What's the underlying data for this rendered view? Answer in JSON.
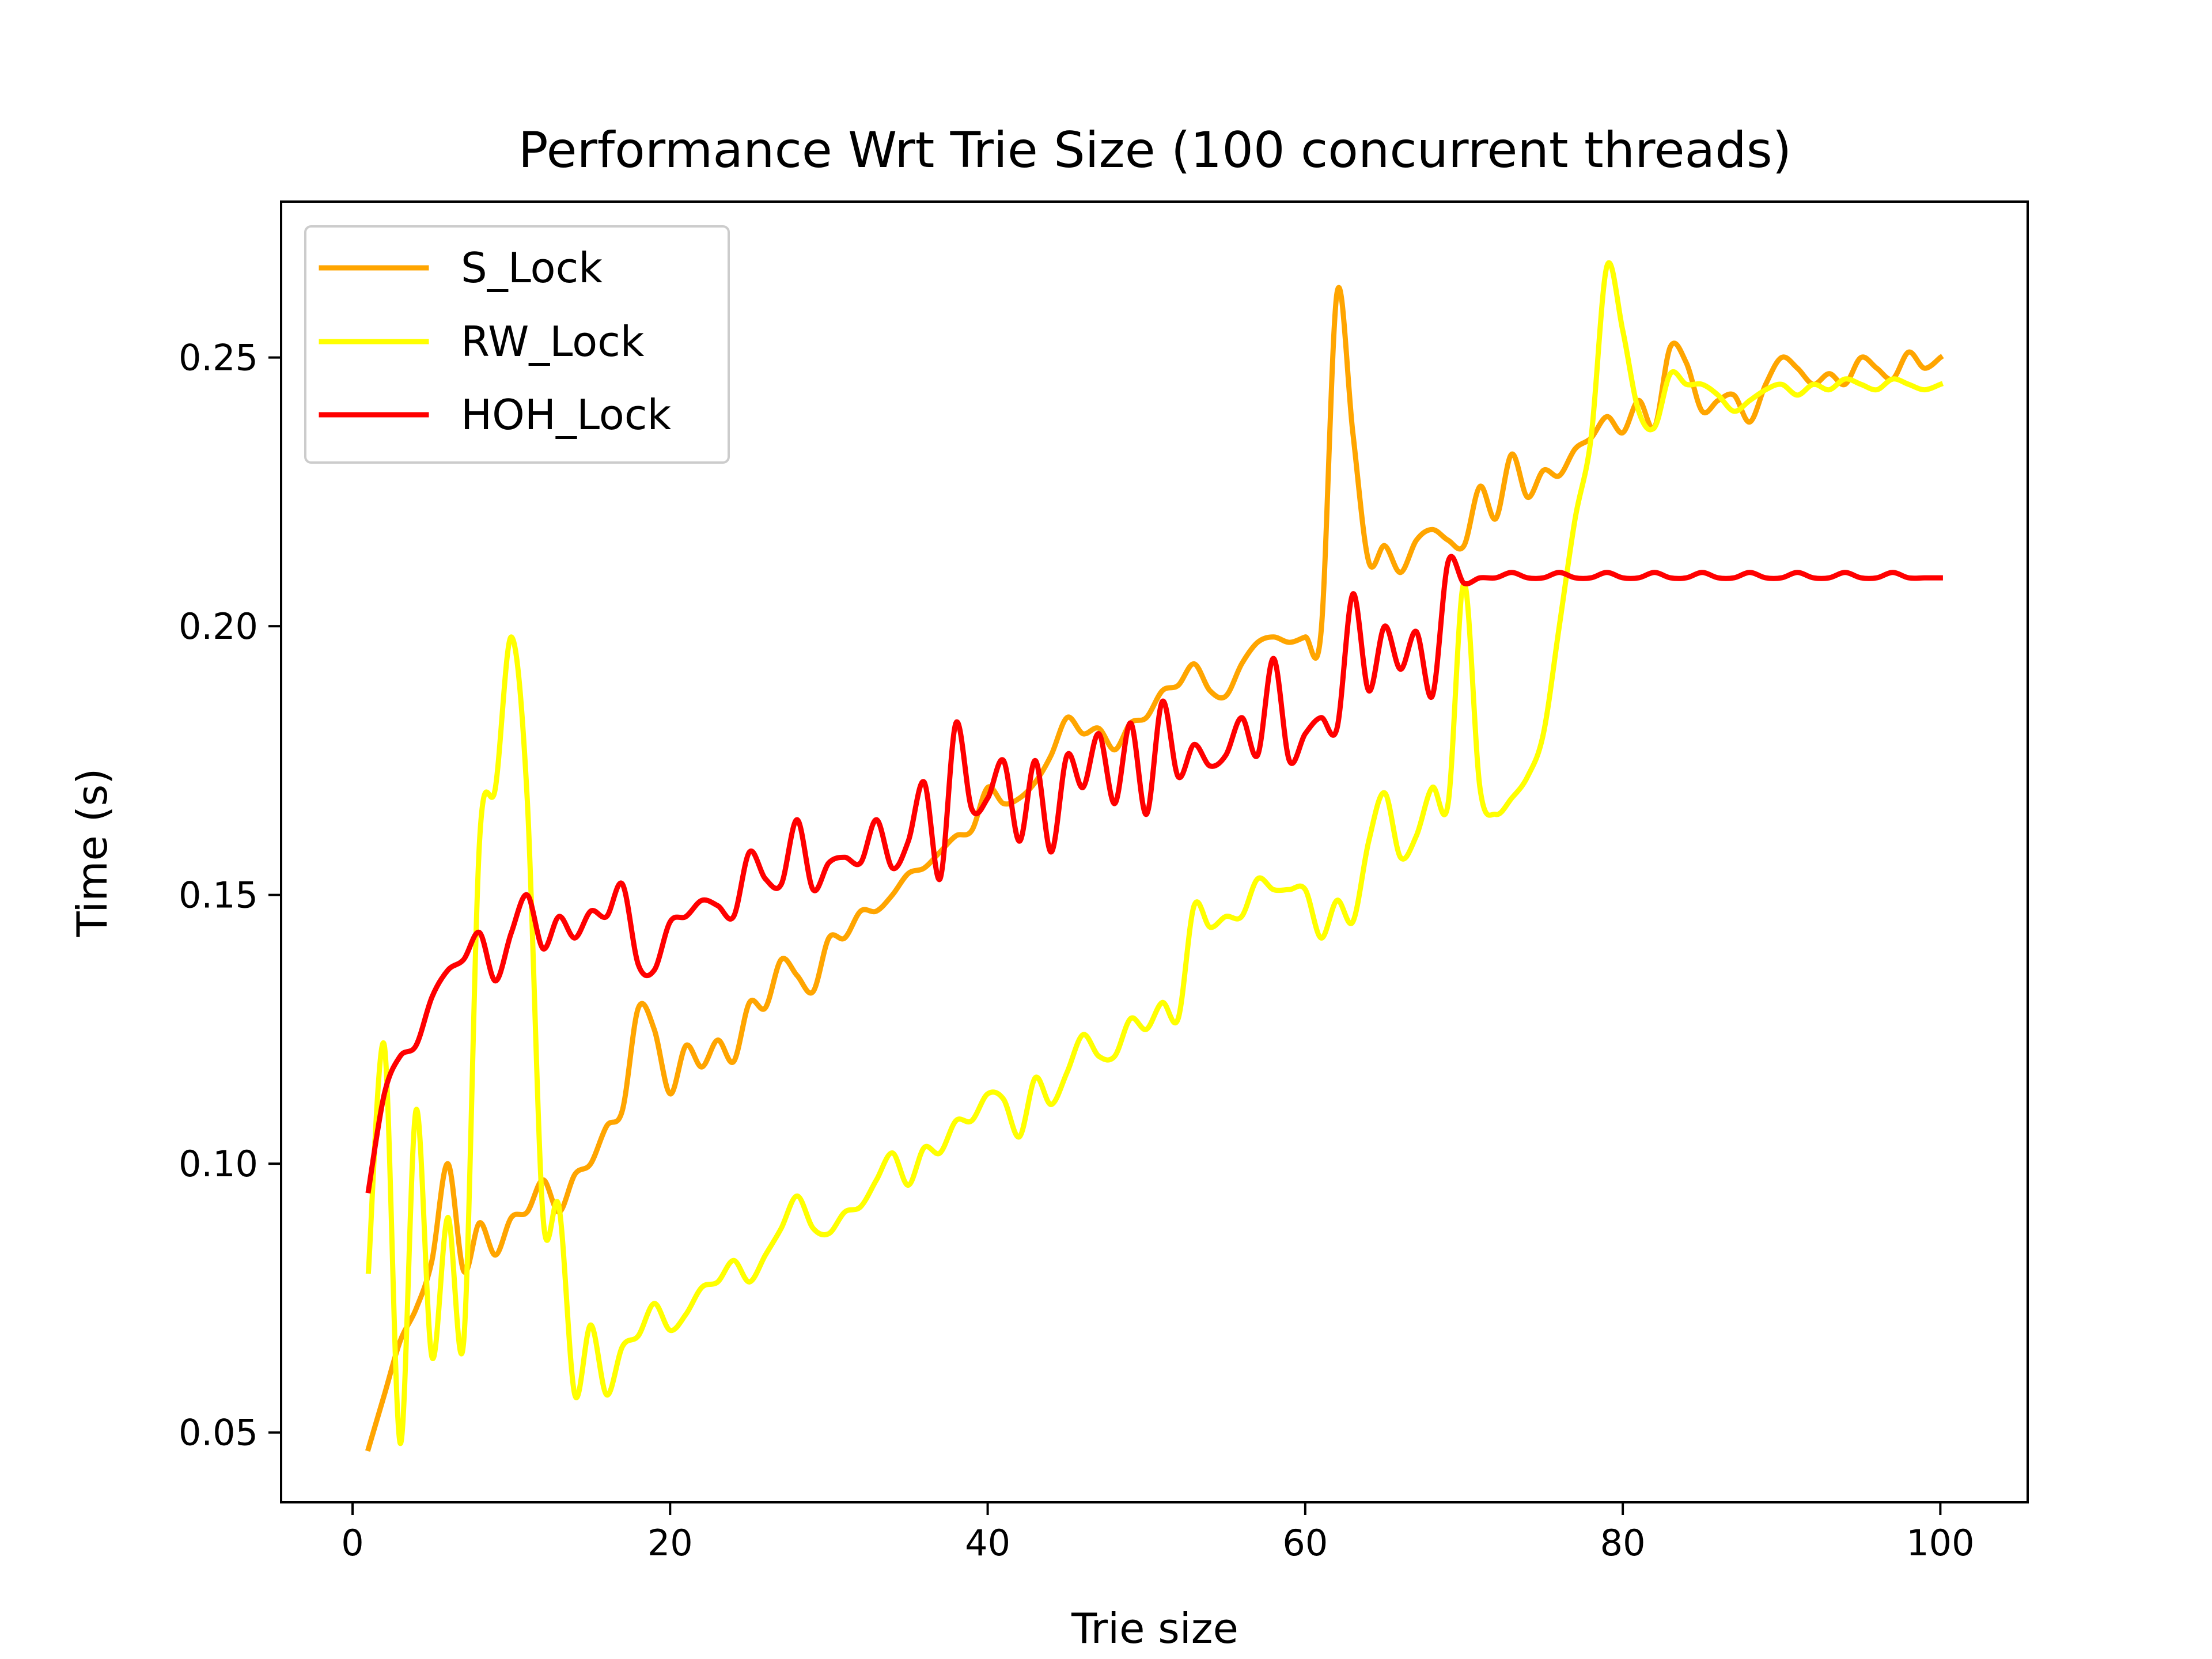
{
  "chart_data": {
    "type": "line",
    "title": "Performance Wrt Trie Size (100 concurrent threads)",
    "xlabel": "Trie size",
    "ylabel": "Time (s)",
    "xlim": [
      -4.5,
      105.5
    ],
    "ylim": [
      0.037,
      0.279
    ],
    "xticks": [
      0,
      20,
      40,
      60,
      80,
      100
    ],
    "xtick_labels": [
      "0",
      "20",
      "40",
      "60",
      "80",
      "100"
    ],
    "yticks": [
      0.05,
      0.1,
      0.15,
      0.2,
      0.25
    ],
    "ytick_labels": [
      "0.05",
      "0.10",
      "0.15",
      "0.20",
      "0.25"
    ],
    "grid": false,
    "legend_position": "top-left",
    "series": [
      {
        "name": "S_Lock",
        "color": "#FFA500",
        "x": [
          1,
          2,
          3,
          4,
          5,
          6,
          7,
          8,
          9,
          10,
          11,
          12,
          13,
          14,
          15,
          16,
          17,
          18,
          19,
          20,
          21,
          22,
          23,
          24,
          25,
          26,
          27,
          28,
          29,
          30,
          31,
          32,
          33,
          34,
          35,
          36,
          37,
          38,
          39,
          40,
          41,
          42,
          43,
          44,
          45,
          46,
          47,
          48,
          49,
          50,
          51,
          52,
          53,
          54,
          55,
          56,
          57,
          58,
          59,
          60,
          61,
          62,
          63,
          64,
          65,
          66,
          67,
          68,
          69,
          70,
          71,
          72,
          73,
          74,
          75,
          76,
          77,
          78,
          79,
          80,
          81,
          82,
          83,
          84,
          85,
          86,
          87,
          88,
          89,
          90,
          91,
          92,
          93,
          94,
          95,
          96,
          97,
          98,
          99,
          100
        ],
        "values": [
          0.047,
          0.057,
          0.067,
          0.073,
          0.082,
          0.1,
          0.08,
          0.089,
          0.083,
          0.09,
          0.091,
          0.097,
          0.091,
          0.098,
          0.1,
          0.107,
          0.11,
          0.129,
          0.125,
          0.113,
          0.122,
          0.118,
          0.123,
          0.119,
          0.13,
          0.129,
          0.138,
          0.135,
          0.132,
          0.142,
          0.142,
          0.147,
          0.147,
          0.15,
          0.154,
          0.155,
          0.158,
          0.161,
          0.162,
          0.17,
          0.167,
          0.168,
          0.171,
          0.176,
          0.183,
          0.18,
          0.181,
          0.177,
          0.182,
          0.183,
          0.188,
          0.189,
          0.193,
          0.188,
          0.187,
          0.193,
          0.197,
          0.198,
          0.197,
          0.198,
          0.199,
          0.262,
          0.236,
          0.212,
          0.215,
          0.21,
          0.216,
          0.218,
          0.216,
          0.215,
          0.226,
          0.22,
          0.232,
          0.224,
          0.229,
          0.228,
          0.233,
          0.235,
          0.239,
          0.236,
          0.242,
          0.237,
          0.252,
          0.249,
          0.24,
          0.242,
          0.243,
          0.238,
          0.245,
          0.25,
          0.248,
          0.245,
          0.247,
          0.245,
          0.25,
          0.248,
          0.246,
          0.251,
          0.248,
          0.25
        ]
      },
      {
        "name": "RW_Lock",
        "color": "#FFFF00",
        "x": [
          1,
          2,
          3,
          4,
          5,
          6,
          7,
          8,
          9,
          10,
          11,
          12,
          13,
          14,
          15,
          16,
          17,
          18,
          19,
          20,
          21,
          22,
          23,
          24,
          25,
          26,
          27,
          28,
          29,
          30,
          31,
          32,
          33,
          34,
          35,
          36,
          37,
          38,
          39,
          40,
          41,
          42,
          43,
          44,
          45,
          46,
          47,
          48,
          49,
          50,
          51,
          52,
          53,
          54,
          55,
          56,
          57,
          58,
          59,
          60,
          61,
          62,
          63,
          64,
          65,
          66,
          67,
          68,
          69,
          70,
          71,
          72,
          73,
          74,
          75,
          76,
          77,
          78,
          79,
          80,
          81,
          82,
          83,
          84,
          85,
          86,
          87,
          88,
          89,
          90,
          91,
          92,
          93,
          94,
          95,
          96,
          97,
          98,
          99,
          100
        ],
        "values": [
          0.08,
          0.122,
          0.048,
          0.11,
          0.064,
          0.09,
          0.067,
          0.16,
          0.17,
          0.198,
          0.168,
          0.09,
          0.092,
          0.057,
          0.07,
          0.057,
          0.066,
          0.068,
          0.074,
          0.069,
          0.072,
          0.077,
          0.078,
          0.082,
          0.078,
          0.083,
          0.088,
          0.094,
          0.088,
          0.087,
          0.091,
          0.092,
          0.097,
          0.102,
          0.096,
          0.103,
          0.102,
          0.108,
          0.108,
          0.113,
          0.112,
          0.105,
          0.116,
          0.111,
          0.117,
          0.124,
          0.12,
          0.12,
          0.127,
          0.125,
          0.13,
          0.127,
          0.148,
          0.144,
          0.146,
          0.146,
          0.153,
          0.151,
          0.151,
          0.151,
          0.142,
          0.149,
          0.145,
          0.16,
          0.169,
          0.157,
          0.161,
          0.17,
          0.167,
          0.208,
          0.17,
          0.165,
          0.168,
          0.172,
          0.18,
          0.2,
          0.22,
          0.235,
          0.267,
          0.255,
          0.24,
          0.237,
          0.247,
          0.245,
          0.245,
          0.243,
          0.24,
          0.242,
          0.244,
          0.245,
          0.243,
          0.245,
          0.244,
          0.246,
          0.245,
          0.244,
          0.246,
          0.245,
          0.244,
          0.245
        ]
      },
      {
        "name": "HOH_Lock",
        "color": "#FF0000",
        "x": [
          1,
          2,
          3,
          4,
          5,
          6,
          7,
          8,
          9,
          10,
          11,
          12,
          13,
          14,
          15,
          16,
          17,
          18,
          19,
          20,
          21,
          22,
          23,
          24,
          25,
          26,
          27,
          28,
          29,
          30,
          31,
          32,
          33,
          34,
          35,
          36,
          37,
          38,
          39,
          40,
          41,
          42,
          43,
          44,
          45,
          46,
          47,
          48,
          49,
          50,
          51,
          52,
          53,
          54,
          55,
          56,
          57,
          58,
          59,
          60,
          61,
          62,
          63,
          64,
          65,
          66,
          67,
          68,
          69,
          70,
          71,
          72,
          73,
          74,
          75,
          76,
          77,
          78,
          79,
          80,
          81,
          82,
          83,
          84,
          85,
          86,
          87,
          88,
          89,
          90,
          91,
          92,
          93,
          94,
          95,
          96,
          97,
          98,
          99,
          100
        ],
        "values": [
          0.095,
          0.113,
          0.12,
          0.122,
          0.131,
          0.136,
          0.138,
          0.143,
          0.134,
          0.143,
          0.15,
          0.14,
          0.146,
          0.142,
          0.147,
          0.146,
          0.152,
          0.137,
          0.136,
          0.145,
          0.146,
          0.149,
          0.148,
          0.146,
          0.158,
          0.153,
          0.152,
          0.164,
          0.151,
          0.156,
          0.157,
          0.156,
          0.164,
          0.155,
          0.16,
          0.171,
          0.153,
          0.182,
          0.166,
          0.168,
          0.175,
          0.16,
          0.175,
          0.158,
          0.176,
          0.17,
          0.18,
          0.167,
          0.182,
          0.165,
          0.186,
          0.172,
          0.178,
          0.174,
          0.176,
          0.183,
          0.176,
          0.194,
          0.175,
          0.18,
          0.183,
          0.181,
          0.206,
          0.188,
          0.2,
          0.192,
          0.199,
          0.187,
          0.212,
          0.208,
          0.209,
          0.209,
          0.21,
          0.209,
          0.209,
          0.21,
          0.209,
          0.209,
          0.21,
          0.209,
          0.209,
          0.21,
          0.209,
          0.209,
          0.21,
          0.209,
          0.209,
          0.21,
          0.209,
          0.209,
          0.21,
          0.209,
          0.209,
          0.21,
          0.209,
          0.209,
          0.21,
          0.209,
          0.209,
          0.209
        ]
      }
    ]
  }
}
